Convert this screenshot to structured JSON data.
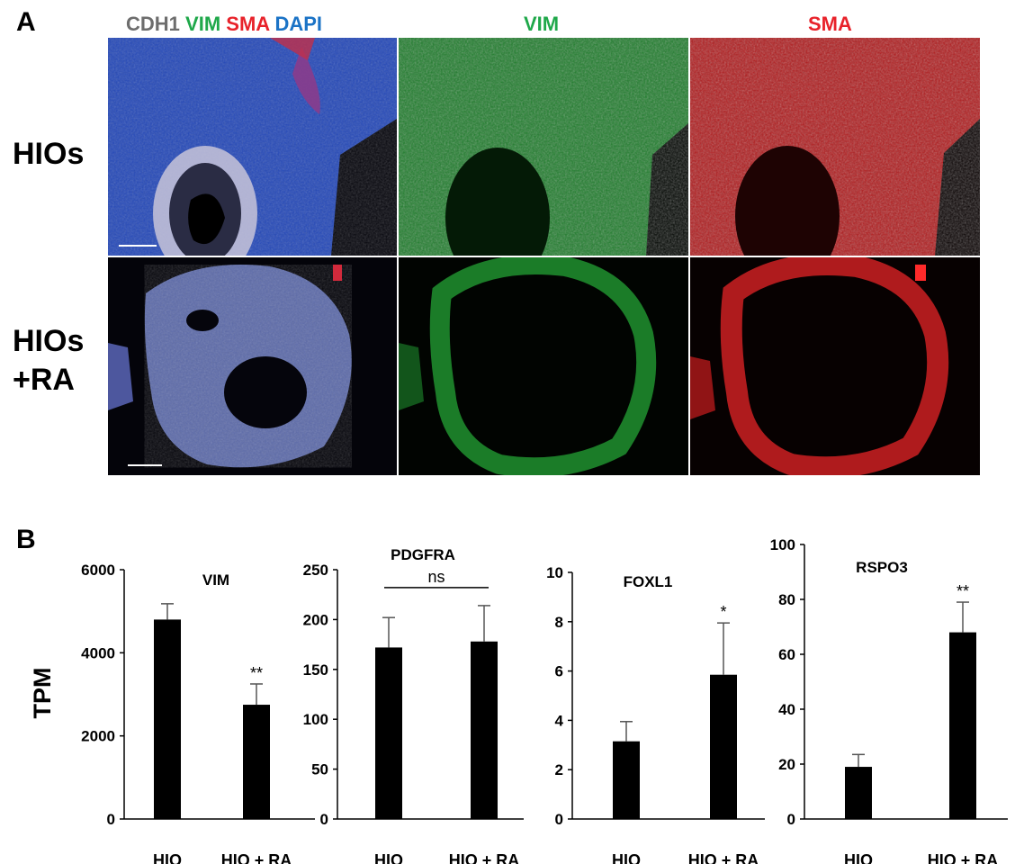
{
  "panel_a": {
    "letter": "A",
    "merge_header": [
      {
        "text": "CDH1",
        "color": "#6d6d6d"
      },
      {
        "text": "VIM",
        "color": "#1fa84a"
      },
      {
        "text": "SMA",
        "color": "#e8222a"
      },
      {
        "text": "DAPI",
        "color": "#1b73c6"
      }
    ],
    "vim_header": {
      "text": "VIM",
      "color": "#1fa84a"
    },
    "sma_header": {
      "text": "SMA",
      "color": "#e8222a"
    },
    "row_labels": [
      {
        "line1": "HIOs",
        "line2": ""
      },
      {
        "line1": "HIOs",
        "line2": "+RA"
      }
    ]
  },
  "panel_b": {
    "letter": "B",
    "ylabel": "TPM"
  },
  "chart_data": [
    {
      "type": "bar",
      "title": "VIM",
      "categories": [
        "HIO",
        "HIO + RA"
      ],
      "values": [
        4800,
        2750
      ],
      "errors": [
        380,
        500
      ],
      "significance": [
        "",
        "**"
      ],
      "ylim": [
        0,
        6000
      ],
      "yticks": [
        0,
        2000,
        4000,
        6000
      ],
      "ylabel": "TPM",
      "bracket": ""
    },
    {
      "type": "bar",
      "title": "PDGFRA",
      "categories": [
        "HIO",
        "HIO + RA"
      ],
      "values": [
        172,
        178
      ],
      "errors": [
        30,
        36
      ],
      "significance": [
        "",
        ""
      ],
      "ylim": [
        0,
        250
      ],
      "yticks": [
        0,
        50,
        100,
        150,
        200,
        250
      ],
      "ylabel": "",
      "bracket": "ns"
    },
    {
      "type": "bar",
      "title": "FOXL1",
      "categories": [
        "HIO",
        "HIO + RA"
      ],
      "values": [
        3.15,
        5.85
      ],
      "errors": [
        0.8,
        2.1
      ],
      "significance": [
        "",
        "*"
      ],
      "ylim": [
        0,
        10
      ],
      "yticks": [
        0,
        2,
        4,
        6,
        8,
        10
      ],
      "ylabel": "",
      "bracket": ""
    },
    {
      "type": "bar",
      "title": "RSPO3",
      "categories": [
        "HIO",
        "HIO + RA"
      ],
      "values": [
        19,
        68
      ],
      "errors": [
        4.5,
        11
      ],
      "significance": [
        "",
        "**"
      ],
      "ylim": [
        0,
        100
      ],
      "yticks": [
        0,
        20,
        40,
        60,
        80,
        100
      ],
      "ylabel": "",
      "bracket": ""
    }
  ]
}
